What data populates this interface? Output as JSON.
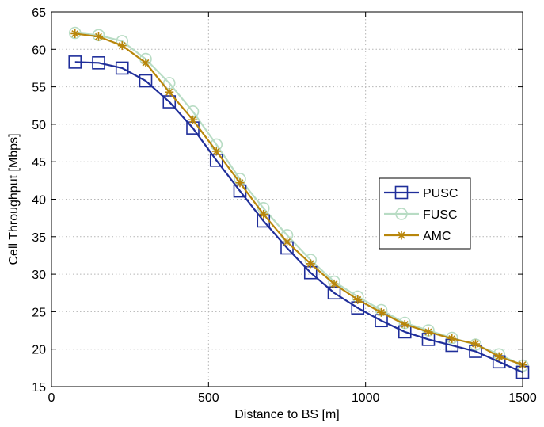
{
  "chart_data": {
    "type": "line",
    "xlabel": "Distance to BS [m]",
    "ylabel": "Cell Throughput [Mbps]",
    "xlim": [
      0,
      1500
    ],
    "ylim": [
      15,
      65
    ],
    "xticks": [
      0,
      500,
      1000,
      1500
    ],
    "yticks": [
      15,
      20,
      25,
      30,
      35,
      40,
      45,
      50,
      55,
      60,
      65
    ],
    "grid": true,
    "legend_position": "center-right",
    "x": [
      75,
      150,
      225,
      300,
      375,
      450,
      525,
      600,
      675,
      750,
      825,
      900,
      975,
      1050,
      1125,
      1200,
      1275,
      1350,
      1425,
      1500
    ],
    "series": [
      {
        "name": "PUSC",
        "color": "#1f2e9a",
        "marker": "square",
        "values": [
          58.3,
          58.2,
          57.5,
          55.8,
          53.0,
          49.5,
          45.2,
          41.1,
          37.1,
          33.5,
          30.2,
          27.5,
          25.5,
          23.8,
          22.3,
          21.3,
          20.5,
          19.7,
          18.3,
          16.9
        ]
      },
      {
        "name": "FUSC",
        "color": "#b8dcc4",
        "marker": "circle",
        "values": [
          62.2,
          61.9,
          61.1,
          58.7,
          55.5,
          51.7,
          47.3,
          42.7,
          38.8,
          35.2,
          31.9,
          29.0,
          27.0,
          25.2,
          23.5,
          22.5,
          21.5,
          20.6,
          19.3,
          17.8
        ]
      },
      {
        "name": "AMC",
        "color": "#b8860b",
        "marker": "asterisk",
        "values": [
          62.1,
          61.7,
          60.5,
          58.2,
          54.3,
          50.6,
          46.4,
          42.2,
          38.0,
          34.3,
          31.4,
          28.7,
          26.6,
          24.9,
          23.3,
          22.3,
          21.4,
          20.7,
          19.0,
          17.9
        ]
      }
    ]
  }
}
